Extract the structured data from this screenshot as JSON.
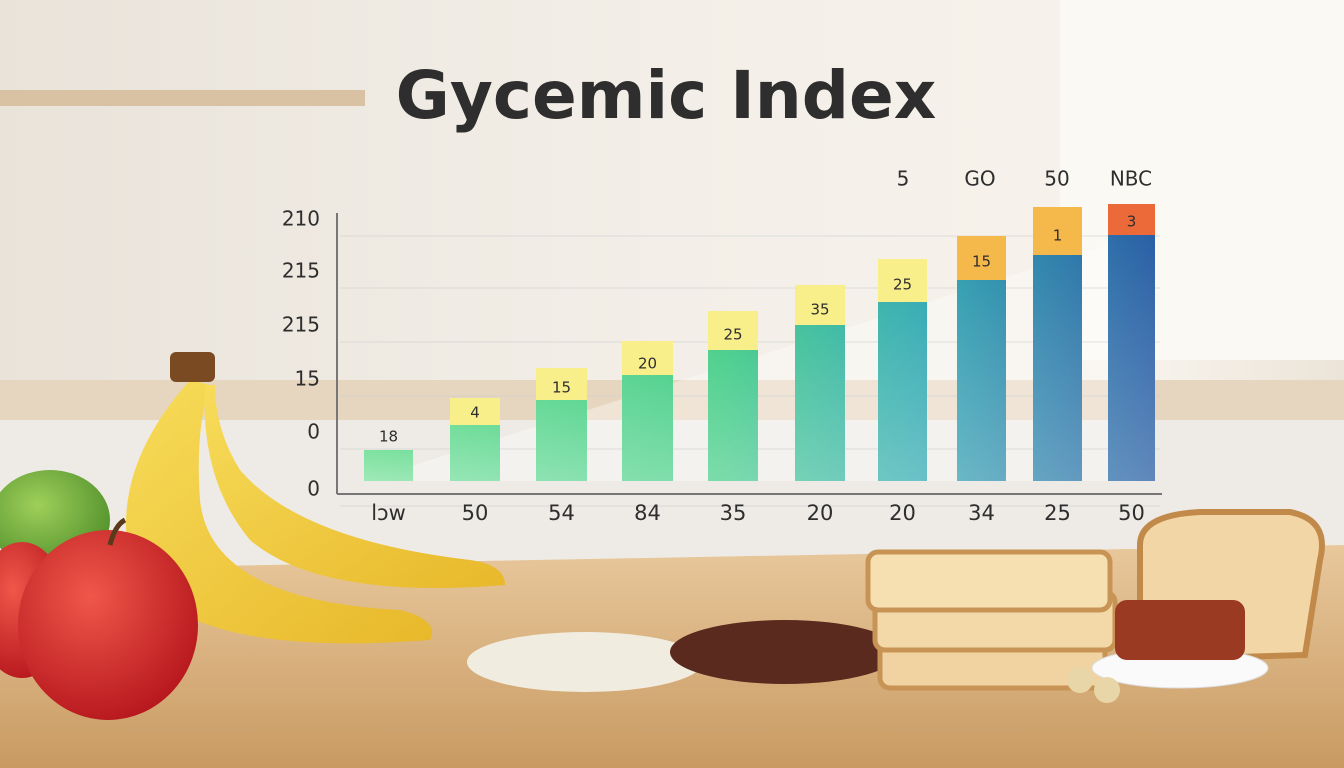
{
  "title": "Gycemic Index",
  "y_axis_labels": [
    "210",
    "215",
    "215",
    "15",
    "0",
    "0"
  ],
  "x_axis_labels": [
    "lɔw",
    "50",
    "54",
    "84",
    "35",
    "20",
    "20",
    "34",
    "25",
    "50"
  ],
  "bar_labels": [
    "18",
    "4",
    "15",
    "20",
    "25",
    "35",
    "25",
    "15",
    "1",
    "3"
  ],
  "column_headers": [
    "5",
    "GO",
    "50",
    "NBC"
  ]
}
